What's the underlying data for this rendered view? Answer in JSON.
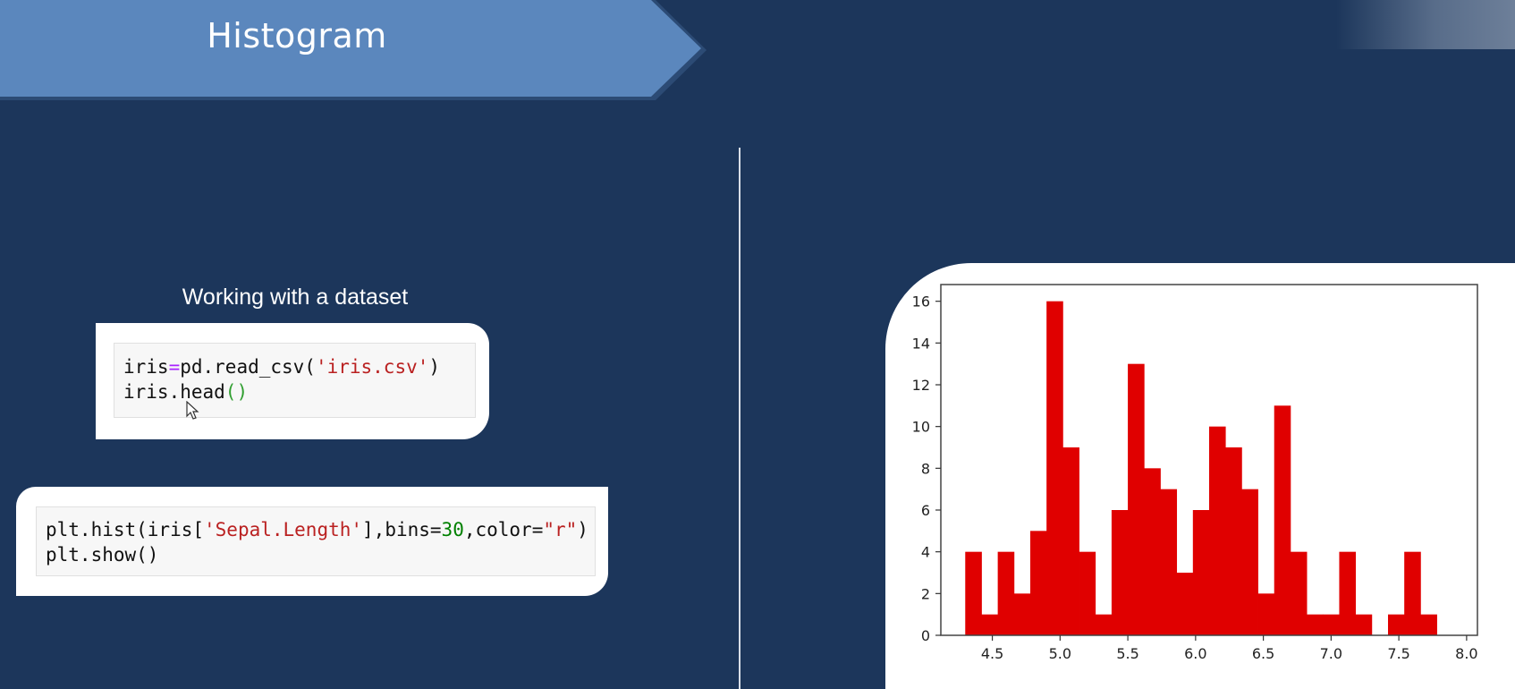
{
  "slide": {
    "title": "Histogram",
    "subtitle": "Working with a dataset"
  },
  "code_cells": [
    {
      "lines": [
        [
          {
            "t": "iris",
            "c": "plain"
          },
          {
            "t": "=",
            "c": "op"
          },
          {
            "t": "pd.read_csv(",
            "c": "plain"
          },
          {
            "t": "'iris.csv'",
            "c": "str"
          },
          {
            "t": ")",
            "c": "plain"
          }
        ],
        [
          {
            "t": "iris.head",
            "c": "plain"
          },
          {
            "t": "()",
            "c": "par"
          }
        ]
      ]
    },
    {
      "lines": [
        [
          {
            "t": "plt.hist(iris[",
            "c": "plain"
          },
          {
            "t": "'Sepal.Length'",
            "c": "str"
          },
          {
            "t": "],bins=",
            "c": "plain"
          },
          {
            "t": "30",
            "c": "num"
          },
          {
            "t": ",color=",
            "c": "plain"
          },
          {
            "t": "\"r\"",
            "c": "str"
          },
          {
            "t": ")",
            "c": "plain"
          }
        ],
        [
          {
            "t": "plt.show()",
            "c": "plain"
          }
        ]
      ]
    }
  ],
  "colors": {
    "background": "#1c365b",
    "ribbon": "#5b87bd",
    "bar": "#e00000"
  },
  "chart_data": {
    "type": "bar",
    "bin_start": 4.3,
    "bin_end": 7.9,
    "values": [
      4,
      1,
      4,
      2,
      5,
      16,
      9,
      4,
      1,
      6,
      13,
      8,
      7,
      3,
      6,
      10,
      9,
      7,
      2,
      11,
      4,
      1,
      1,
      4,
      1,
      0,
      1,
      4,
      1,
      0
    ],
    "x_ticks": [
      "4.5",
      "5.0",
      "5.5",
      "6.0",
      "6.5",
      "7.0",
      "7.5",
      "8.0"
    ],
    "y_ticks": [
      "0",
      "2",
      "4",
      "6",
      "8",
      "10",
      "12",
      "14",
      "16"
    ],
    "xlim": [
      4.12,
      8.08
    ],
    "ylim": [
      0,
      16.8
    ],
    "title": "",
    "xlabel": "",
    "ylabel": "",
    "grid": false
  }
}
